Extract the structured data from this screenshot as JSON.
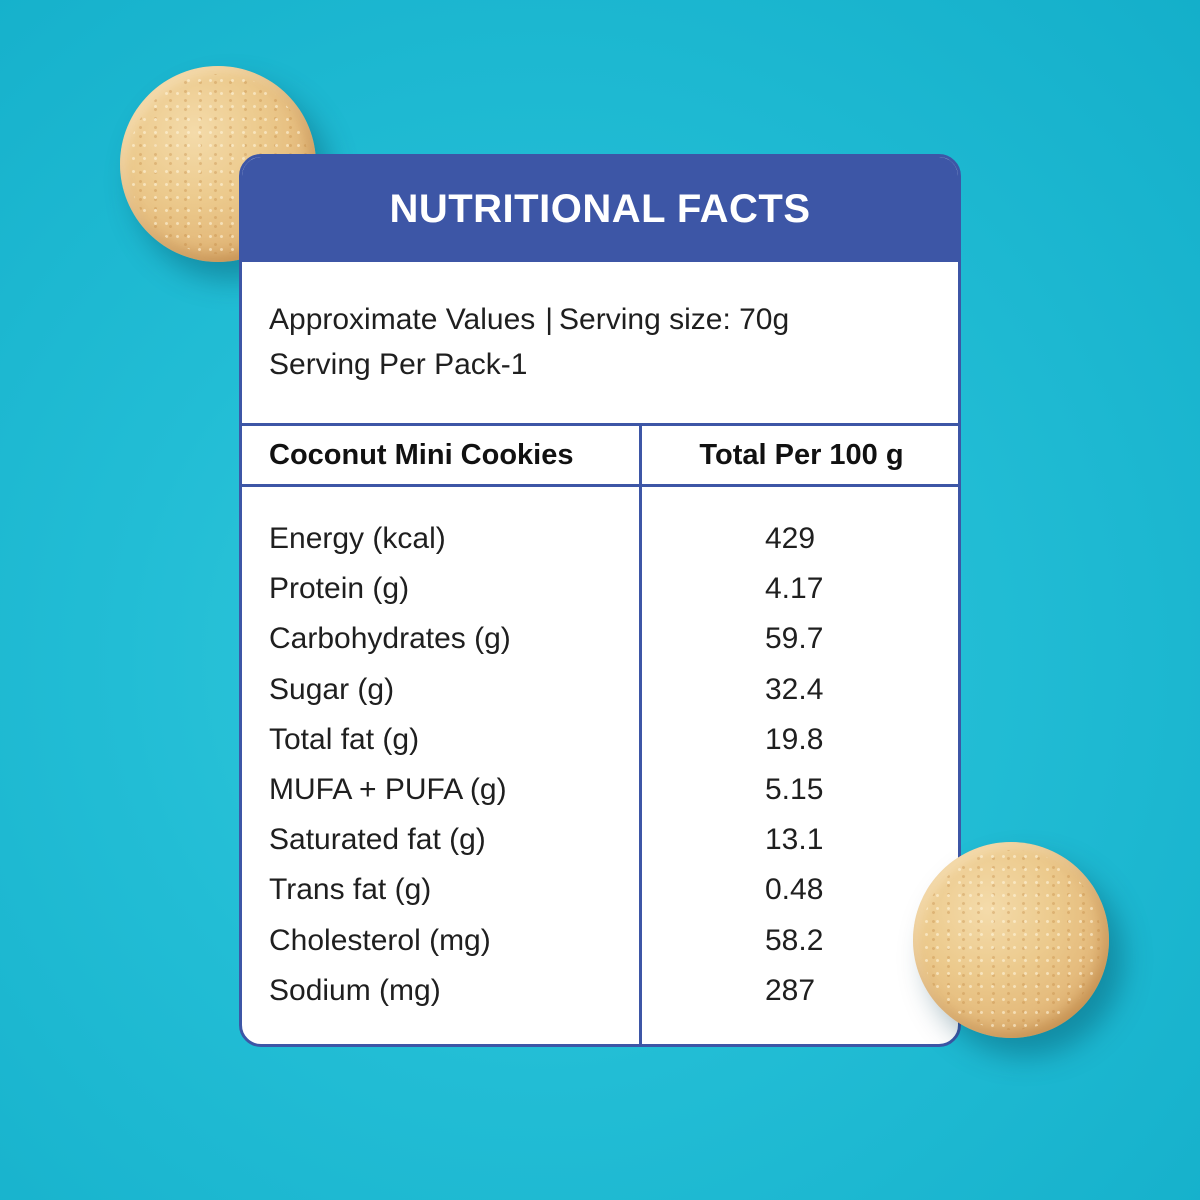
{
  "card": {
    "title": "NUTRITIONAL FACTS",
    "approximate_values": "Approximate Values",
    "separator": "|",
    "serving_size": "Serving size: 70g",
    "serving_per_pack": "Serving Per Pack-1"
  },
  "table": {
    "headers": {
      "product": "Coconut Mini Cookies",
      "value": "Total Per 100 g"
    },
    "rows": [
      {
        "nutrient": "Energy (kcal)",
        "value": "429"
      },
      {
        "nutrient": "Protein (g)",
        "value": "4.17"
      },
      {
        "nutrient": "Carbohydrates (g)",
        "value": "59.7"
      },
      {
        "nutrient": "Sugar (g)",
        "value": "32.4"
      },
      {
        "nutrient": "Total fat (g)",
        "value": "19.8"
      },
      {
        "nutrient": "MUFA + PUFA (g)",
        "value": "5.15"
      },
      {
        "nutrient": "Saturated fat (g)",
        "value": "13.1"
      },
      {
        "nutrient": "Trans fat (g)",
        "value": "0.48"
      },
      {
        "nutrient": "Cholesterol (mg)",
        "value": "58.2"
      },
      {
        "nutrient": "Sodium (mg)",
        "value": "287"
      }
    ]
  },
  "colors": {
    "background": "#22bdd5",
    "card_accent": "#3d56a6",
    "card_background": "#ffffff",
    "cookie": "#e2b677"
  }
}
